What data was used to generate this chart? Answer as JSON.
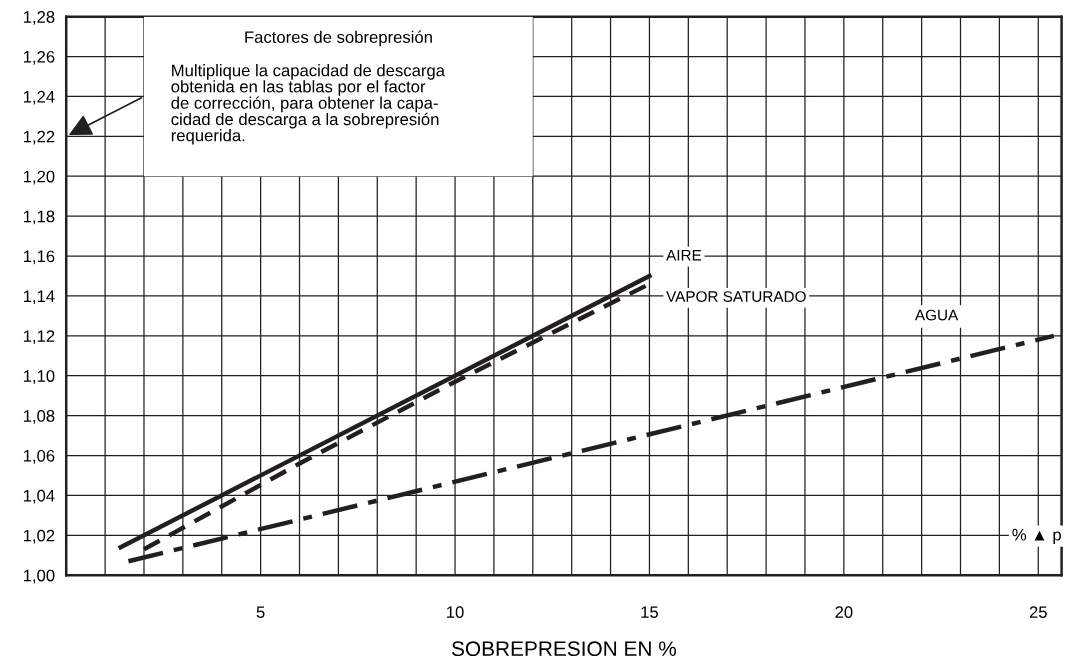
{
  "chart_data": {
    "type": "line",
    "xlabel": "SOBREPRESION EN %",
    "annotations": [
      "Factores de sobrepresión",
      "Multiplique la capacidad de descarga\nobtenida en las tablas por el factor\nde corrección, para obtener la capa-\ncidad de descarga a la sobrepresión\nrequerida.",
      "% ▲ p"
    ],
    "series": [
      {
        "name": "AIRE",
        "color": "#231f20",
        "line_style": "solid",
        "x": [
          1.4,
          15
        ],
        "values": [
          1.014,
          1.15
        ]
      },
      {
        "name": "VAPOR SATURADO",
        "color": "#231f20",
        "line_style": "dashed",
        "x": [
          2,
          6,
          10,
          15
        ],
        "values": [
          1.013,
          1.056,
          1.097,
          1.146
        ]
      },
      {
        "name": "AGUA",
        "color": "#231f20",
        "line_style": "dashdot",
        "x": [
          1.6,
          25.4
        ],
        "values": [
          1.007,
          1.12
        ]
      }
    ],
    "xlim": [
      0,
      25.6
    ],
    "xticks": [
      {
        "value": 1,
        "label": null
      },
      {
        "value": 2,
        "label": null
      },
      {
        "value": 3,
        "label": null
      },
      {
        "value": 4,
        "label": null
      },
      5,
      {
        "value": 6,
        "label": null
      },
      {
        "value": 7,
        "label": null
      },
      {
        "value": 8,
        "label": null
      },
      {
        "value": 9,
        "label": null
      },
      10,
      {
        "value": 11,
        "label": null
      },
      {
        "value": 12,
        "label": null
      },
      {
        "value": 13,
        "label": null
      },
      {
        "value": 14,
        "label": null
      },
      15,
      {
        "value": 16,
        "label": null
      },
      {
        "value": 17,
        "label": null
      },
      {
        "value": 18,
        "label": null
      },
      {
        "value": 19,
        "label": null
      },
      20,
      {
        "value": 21,
        "label": null
      },
      {
        "value": 22,
        "label": null
      },
      {
        "value": 23,
        "label": null
      },
      {
        "value": 24,
        "label": null
      },
      25
    ],
    "ylim": [
      1.0,
      1.28
    ],
    "yticks": [
      {
        "value": 1.0,
        "label": "1,00"
      },
      {
        "value": 1.02,
        "label": "1,02"
      },
      {
        "value": 1.04,
        "label": "1,04"
      },
      {
        "value": 1.06,
        "label": "1,06"
      },
      {
        "value": 1.08,
        "label": "1,08"
      },
      {
        "value": 1.1,
        "label": "1,10"
      },
      {
        "value": 1.12,
        "label": "1,12"
      },
      {
        "value": 1.14,
        "label": "1,14"
      },
      {
        "value": 1.16,
        "label": "1,16"
      },
      {
        "value": 1.18,
        "label": "1,18"
      },
      {
        "value": 1.2,
        "label": "1,20"
      },
      {
        "value": 1.22,
        "label": "1,22"
      },
      {
        "value": 1.24,
        "label": "1,24"
      },
      {
        "value": 1.26,
        "label": "1,26"
      },
      {
        "value": 1.28,
        "label": "1,28"
      }
    ],
    "grid": true,
    "legend": false,
    "marker": "none"
  }
}
